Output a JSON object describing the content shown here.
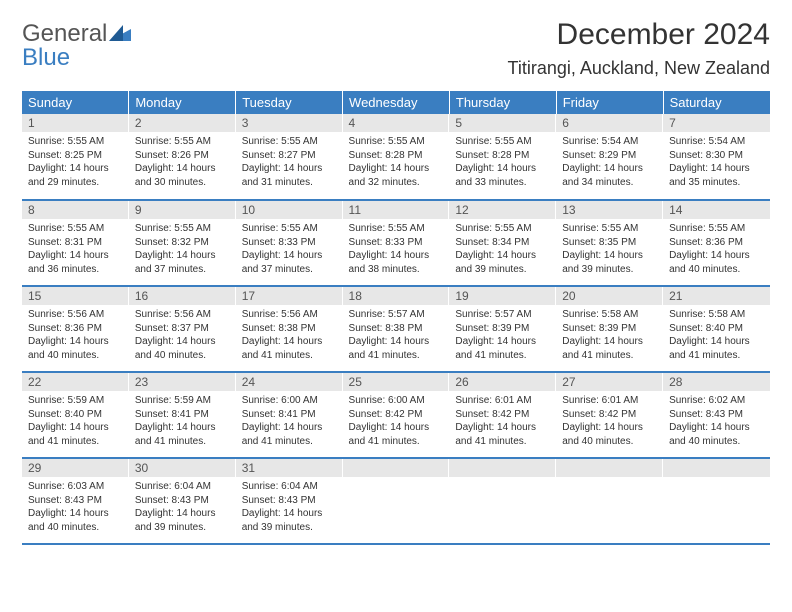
{
  "logo": {
    "line1": "General",
    "line2": "Blue"
  },
  "title": "December 2024",
  "location": "Titirangi, Auckland, New Zealand",
  "theme": {
    "header_bg": "#3a7ec1",
    "header_fg": "#ffffff",
    "daynum_bg": "#e7e7e7",
    "border_color": "#3a7ec1",
    "text_color": "#333333",
    "body_fontsize": 10,
    "daynum_fontsize": 12,
    "th_fontsize": 13,
    "title_fontsize": 30,
    "location_fontsize": 18
  },
  "weekdays": [
    "Sunday",
    "Monday",
    "Tuesday",
    "Wednesday",
    "Thursday",
    "Friday",
    "Saturday"
  ],
  "weeks": [
    [
      {
        "day": "1",
        "sunrise": "Sunrise: 5:55 AM",
        "sunset": "Sunset: 8:25 PM",
        "daylight": "Daylight: 14 hours and 29 minutes."
      },
      {
        "day": "2",
        "sunrise": "Sunrise: 5:55 AM",
        "sunset": "Sunset: 8:26 PM",
        "daylight": "Daylight: 14 hours and 30 minutes."
      },
      {
        "day": "3",
        "sunrise": "Sunrise: 5:55 AM",
        "sunset": "Sunset: 8:27 PM",
        "daylight": "Daylight: 14 hours and 31 minutes."
      },
      {
        "day": "4",
        "sunrise": "Sunrise: 5:55 AM",
        "sunset": "Sunset: 8:28 PM",
        "daylight": "Daylight: 14 hours and 32 minutes."
      },
      {
        "day": "5",
        "sunrise": "Sunrise: 5:55 AM",
        "sunset": "Sunset: 8:28 PM",
        "daylight": "Daylight: 14 hours and 33 minutes."
      },
      {
        "day": "6",
        "sunrise": "Sunrise: 5:54 AM",
        "sunset": "Sunset: 8:29 PM",
        "daylight": "Daylight: 14 hours and 34 minutes."
      },
      {
        "day": "7",
        "sunrise": "Sunrise: 5:54 AM",
        "sunset": "Sunset: 8:30 PM",
        "daylight": "Daylight: 14 hours and 35 minutes."
      }
    ],
    [
      {
        "day": "8",
        "sunrise": "Sunrise: 5:55 AM",
        "sunset": "Sunset: 8:31 PM",
        "daylight": "Daylight: 14 hours and 36 minutes."
      },
      {
        "day": "9",
        "sunrise": "Sunrise: 5:55 AM",
        "sunset": "Sunset: 8:32 PM",
        "daylight": "Daylight: 14 hours and 37 minutes."
      },
      {
        "day": "10",
        "sunrise": "Sunrise: 5:55 AM",
        "sunset": "Sunset: 8:33 PM",
        "daylight": "Daylight: 14 hours and 37 minutes."
      },
      {
        "day": "11",
        "sunrise": "Sunrise: 5:55 AM",
        "sunset": "Sunset: 8:33 PM",
        "daylight": "Daylight: 14 hours and 38 minutes."
      },
      {
        "day": "12",
        "sunrise": "Sunrise: 5:55 AM",
        "sunset": "Sunset: 8:34 PM",
        "daylight": "Daylight: 14 hours and 39 minutes."
      },
      {
        "day": "13",
        "sunrise": "Sunrise: 5:55 AM",
        "sunset": "Sunset: 8:35 PM",
        "daylight": "Daylight: 14 hours and 39 minutes."
      },
      {
        "day": "14",
        "sunrise": "Sunrise: 5:55 AM",
        "sunset": "Sunset: 8:36 PM",
        "daylight": "Daylight: 14 hours and 40 minutes."
      }
    ],
    [
      {
        "day": "15",
        "sunrise": "Sunrise: 5:56 AM",
        "sunset": "Sunset: 8:36 PM",
        "daylight": "Daylight: 14 hours and 40 minutes."
      },
      {
        "day": "16",
        "sunrise": "Sunrise: 5:56 AM",
        "sunset": "Sunset: 8:37 PM",
        "daylight": "Daylight: 14 hours and 40 minutes."
      },
      {
        "day": "17",
        "sunrise": "Sunrise: 5:56 AM",
        "sunset": "Sunset: 8:38 PM",
        "daylight": "Daylight: 14 hours and 41 minutes."
      },
      {
        "day": "18",
        "sunrise": "Sunrise: 5:57 AM",
        "sunset": "Sunset: 8:38 PM",
        "daylight": "Daylight: 14 hours and 41 minutes."
      },
      {
        "day": "19",
        "sunrise": "Sunrise: 5:57 AM",
        "sunset": "Sunset: 8:39 PM",
        "daylight": "Daylight: 14 hours and 41 minutes."
      },
      {
        "day": "20",
        "sunrise": "Sunrise: 5:58 AM",
        "sunset": "Sunset: 8:39 PM",
        "daylight": "Daylight: 14 hours and 41 minutes."
      },
      {
        "day": "21",
        "sunrise": "Sunrise: 5:58 AM",
        "sunset": "Sunset: 8:40 PM",
        "daylight": "Daylight: 14 hours and 41 minutes."
      }
    ],
    [
      {
        "day": "22",
        "sunrise": "Sunrise: 5:59 AM",
        "sunset": "Sunset: 8:40 PM",
        "daylight": "Daylight: 14 hours and 41 minutes."
      },
      {
        "day": "23",
        "sunrise": "Sunrise: 5:59 AM",
        "sunset": "Sunset: 8:41 PM",
        "daylight": "Daylight: 14 hours and 41 minutes."
      },
      {
        "day": "24",
        "sunrise": "Sunrise: 6:00 AM",
        "sunset": "Sunset: 8:41 PM",
        "daylight": "Daylight: 14 hours and 41 minutes."
      },
      {
        "day": "25",
        "sunrise": "Sunrise: 6:00 AM",
        "sunset": "Sunset: 8:42 PM",
        "daylight": "Daylight: 14 hours and 41 minutes."
      },
      {
        "day": "26",
        "sunrise": "Sunrise: 6:01 AM",
        "sunset": "Sunset: 8:42 PM",
        "daylight": "Daylight: 14 hours and 41 minutes."
      },
      {
        "day": "27",
        "sunrise": "Sunrise: 6:01 AM",
        "sunset": "Sunset: 8:42 PM",
        "daylight": "Daylight: 14 hours and 40 minutes."
      },
      {
        "day": "28",
        "sunrise": "Sunrise: 6:02 AM",
        "sunset": "Sunset: 8:43 PM",
        "daylight": "Daylight: 14 hours and 40 minutes."
      }
    ],
    [
      {
        "day": "29",
        "sunrise": "Sunrise: 6:03 AM",
        "sunset": "Sunset: 8:43 PM",
        "daylight": "Daylight: 14 hours and 40 minutes."
      },
      {
        "day": "30",
        "sunrise": "Sunrise: 6:04 AM",
        "sunset": "Sunset: 8:43 PM",
        "daylight": "Daylight: 14 hours and 39 minutes."
      },
      {
        "day": "31",
        "sunrise": "Sunrise: 6:04 AM",
        "sunset": "Sunset: 8:43 PM",
        "daylight": "Daylight: 14 hours and 39 minutes."
      },
      {
        "day": "",
        "sunrise": "",
        "sunset": "",
        "daylight": ""
      },
      {
        "day": "",
        "sunrise": "",
        "sunset": "",
        "daylight": ""
      },
      {
        "day": "",
        "sunrise": "",
        "sunset": "",
        "daylight": ""
      },
      {
        "day": "",
        "sunrise": "",
        "sunset": "",
        "daylight": ""
      }
    ]
  ]
}
